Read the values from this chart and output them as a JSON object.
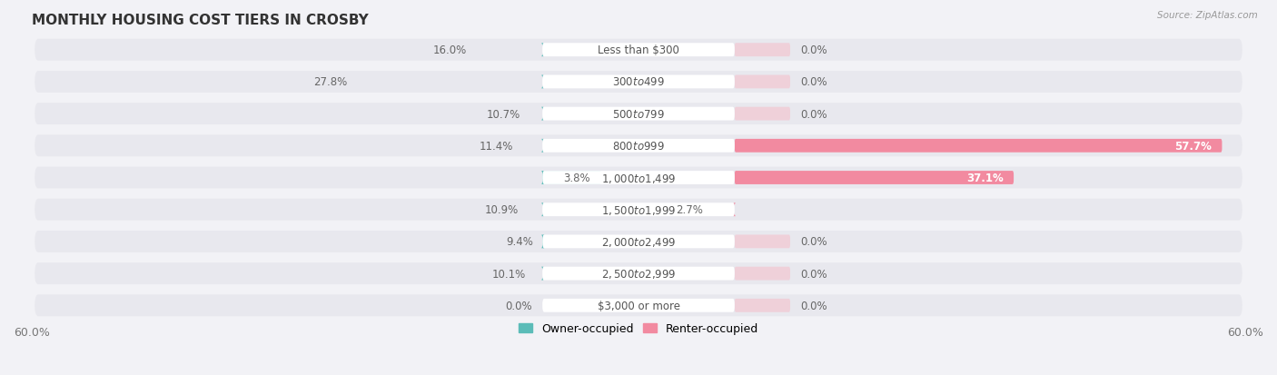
{
  "title": "MONTHLY HOUSING COST TIERS IN CROSBY",
  "source": "Source: ZipAtlas.com",
  "categories": [
    "Less than $300",
    "$300 to $499",
    "$500 to $799",
    "$800 to $999",
    "$1,000 to $1,499",
    "$1,500 to $1,999",
    "$2,000 to $2,499",
    "$2,500 to $2,999",
    "$3,000 or more"
  ],
  "owner_values": [
    16.0,
    27.8,
    10.7,
    11.4,
    3.8,
    10.9,
    9.4,
    10.1,
    0.0
  ],
  "renter_values": [
    0.0,
    0.0,
    0.0,
    57.7,
    37.1,
    2.7,
    0.0,
    0.0,
    0.0
  ],
  "owner_color": "#5bbcb8",
  "renter_color": "#f28aa0",
  "axis_limit": 60.0,
  "background_color": "#f2f2f6",
  "row_bg_color": "#e8e8ee",
  "label_box_color": "#ffffff",
  "title_fontsize": 11,
  "label_fontsize": 8.5,
  "cat_fontsize": 8.5,
  "tick_fontsize": 9,
  "legend_fontsize": 9,
  "label_color": "#666666",
  "cat_label_color": "#555555",
  "large_renter_label_color": "#ffffff"
}
